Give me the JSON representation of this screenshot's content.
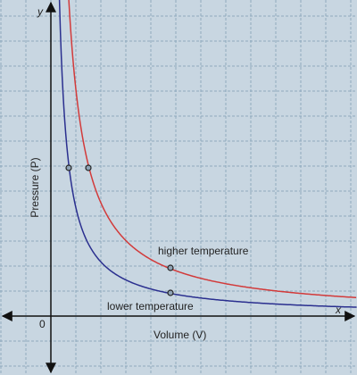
{
  "axes": {
    "x": "x",
    "y": "y",
    "origin": "0",
    "x_label": "Volume (V)",
    "y_label": "Pressure (P)"
  },
  "curves": {
    "higher": "higher temperature",
    "lower": "lower temperature"
  }
}
